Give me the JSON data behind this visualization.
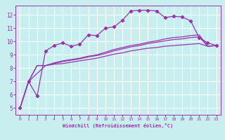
{
  "bg_color": "#c8eef0",
  "grid_color": "#ffffff",
  "line_color": "#9933aa",
  "xlabel": "Windchill (Refroidissement éolien,°C)",
  "xlim": [
    -0.5,
    23.5
  ],
  "ylim": [
    4.5,
    12.7
  ],
  "xticks": [
    0,
    1,
    2,
    3,
    4,
    5,
    6,
    7,
    8,
    9,
    10,
    11,
    12,
    13,
    14,
    15,
    16,
    17,
    18,
    19,
    20,
    21,
    22,
    23
  ],
  "yticks": [
    5,
    6,
    7,
    8,
    9,
    10,
    11,
    12
  ],
  "series": [
    {
      "x": [
        0,
        1,
        2,
        3,
        4,
        5,
        6,
        7,
        8,
        9,
        10,
        11,
        12,
        13,
        14,
        15,
        16,
        17,
        18,
        19,
        20,
        21,
        22,
        23
      ],
      "y": [
        5.0,
        7.0,
        5.9,
        9.3,
        9.7,
        9.9,
        9.65,
        9.8,
        10.5,
        10.45,
        11.0,
        11.1,
        11.6,
        12.3,
        12.35,
        12.35,
        12.3,
        11.8,
        11.9,
        11.85,
        11.55,
        10.3,
        9.9,
        9.7
      ],
      "marker": "D",
      "markersize": 2.2,
      "linewidth": 0.9
    },
    {
      "x": [
        0,
        1,
        2,
        3,
        4,
        5,
        6,
        7,
        8,
        9,
        10,
        11,
        12,
        13,
        14,
        15,
        16,
        17,
        18,
        19,
        20,
        21,
        22,
        23
      ],
      "y": [
        5.0,
        7.0,
        8.2,
        8.2,
        8.3,
        8.35,
        8.45,
        8.55,
        8.65,
        8.75,
        8.9,
        9.05,
        9.15,
        9.3,
        9.4,
        9.5,
        9.55,
        9.65,
        9.7,
        9.75,
        9.8,
        9.85,
        9.65,
        9.7
      ],
      "marker": null,
      "markersize": 0,
      "linewidth": 0.9
    },
    {
      "x": [
        0,
        1,
        2,
        3,
        4,
        5,
        6,
        7,
        8,
        9,
        10,
        11,
        12,
        13,
        14,
        15,
        16,
        17,
        18,
        19,
        20,
        21,
        22,
        23
      ],
      "y": [
        5.0,
        7.0,
        8.2,
        8.2,
        8.35,
        8.5,
        8.6,
        8.7,
        8.85,
        8.95,
        9.1,
        9.3,
        9.45,
        9.6,
        9.7,
        9.85,
        9.95,
        10.05,
        10.15,
        10.2,
        10.3,
        10.35,
        9.65,
        9.7
      ],
      "marker": null,
      "markersize": 0,
      "linewidth": 0.9
    },
    {
      "x": [
        0,
        1,
        2,
        3,
        4,
        5,
        6,
        7,
        8,
        9,
        10,
        11,
        12,
        13,
        14,
        15,
        16,
        17,
        18,
        19,
        20,
        21,
        22,
        23
      ],
      "y": [
        5.0,
        7.0,
        7.6,
        8.2,
        8.4,
        8.55,
        8.65,
        8.75,
        8.9,
        9.0,
        9.2,
        9.4,
        9.55,
        9.7,
        9.8,
        9.95,
        10.05,
        10.2,
        10.3,
        10.35,
        10.45,
        10.5,
        9.65,
        9.7
      ],
      "marker": null,
      "markersize": 0,
      "linewidth": 0.9
    }
  ]
}
